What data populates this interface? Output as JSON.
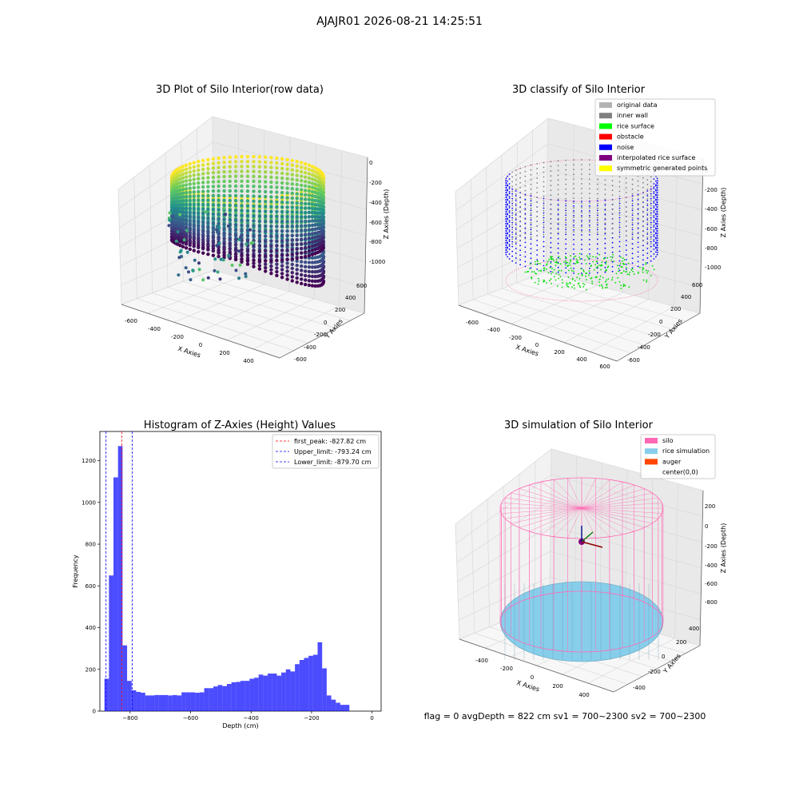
{
  "suptitle": "AJAJR01 2026-08-21 14:25:51",
  "panels": {
    "raw": {
      "title": "3D Plot of Silo Interior(row data)",
      "xlabel": "X Axies",
      "ylabel": "Y Axies",
      "zlabel": "Z Axies (Depth)",
      "xticks": [
        "-600",
        "-400",
        "-200",
        "0",
        "200",
        "400"
      ],
      "yticks": [
        "-600",
        "-400",
        "-200",
        "0",
        "200",
        "400",
        "600"
      ],
      "zticks": [
        "0",
        "-200",
        "-400",
        "-600",
        "-800",
        "-1000"
      ]
    },
    "classify": {
      "title": "3D classify of Silo Interior",
      "xlabel": "X Axies",
      "ylabel": "Y Axies",
      "zlabel": "Z Axies (Depth)",
      "xticks": [
        "-600",
        "-400",
        "-200",
        "0",
        "200",
        "400",
        "600"
      ],
      "yticks": [
        "-600",
        "-400",
        "-200",
        "0",
        "200",
        "400",
        "600"
      ],
      "zticks": [
        "0",
        "-200",
        "-400",
        "-600",
        "-800",
        "-1000"
      ],
      "legend": [
        {
          "label": "original data",
          "color": "#b3b3b3"
        },
        {
          "label": "inner wall",
          "color": "#808080"
        },
        {
          "label": "rice surface",
          "color": "#00ff00"
        },
        {
          "label": "obstacle",
          "color": "#ff0000"
        },
        {
          "label": "noise",
          "color": "#0000ff"
        },
        {
          "label": "interpolated rice surface",
          "color": "#800080"
        },
        {
          "label": "symmetric generated points",
          "color": "#ffff00"
        }
      ]
    },
    "sim": {
      "title": "3D simulation of Silo Interior",
      "xlabel": "X Axies",
      "ylabel": "Y Axies",
      "zlabel": "Z Axies (Depth)",
      "xticks": [
        "-400",
        "-200",
        "0",
        "200",
        "400"
      ],
      "yticks": [
        "-400",
        "-200",
        "0",
        "200",
        "400"
      ],
      "zticks": [
        "200",
        "0",
        "-200",
        "-400",
        "-600",
        "-800"
      ],
      "legend": [
        {
          "label": "silo",
          "color": "#ff69b4"
        },
        {
          "label": "rice simulation",
          "color": "#87ceeb"
        },
        {
          "label": "auger",
          "color": "#ff4500"
        },
        {
          "label": "center(0,0)",
          "color": "#ffffff"
        }
      ]
    }
  },
  "bottom_info": "flag = 0     avgDepth = 822 cm  sv1 = 700~2300  sv2 = 700~2300",
  "chart_data": [
    {
      "type": "scatter",
      "title": "3D Plot of Silo Interior(row data)",
      "xlabel": "X Axies",
      "ylabel": "Y Axies",
      "zlabel": "Z Axies (Depth)",
      "xlim": [
        -650,
        500
      ],
      "ylim": [
        -650,
        650
      ],
      "zlim": [
        -1100,
        50
      ],
      "colormap": "viridis",
      "notes_series": "cylindrical point cloud of silo wall, colored by depth"
    },
    {
      "type": "scatter",
      "title": "3D classify of Silo Interior",
      "xlabel": "X Axies",
      "ylabel": "Y Axies",
      "zlabel": "Z Axies (Depth)",
      "xlim": [
        -650,
        650
      ],
      "ylim": [
        -650,
        650
      ],
      "zlim": [
        -1100,
        50
      ],
      "series": [
        {
          "name": "original data"
        },
        {
          "name": "inner wall"
        },
        {
          "name": "rice surface"
        },
        {
          "name": "obstacle"
        },
        {
          "name": "noise"
        },
        {
          "name": "interpolated rice surface"
        },
        {
          "name": "symmetric generated points"
        }
      ]
    },
    {
      "type": "bar",
      "title": "Histogram of Z-Axies (Height) Values",
      "xlabel": "Depth (cm)",
      "ylabel": "Frequency",
      "xlim": [
        -900,
        30
      ],
      "ylim": [
        0,
        1340
      ],
      "xticks": [
        -800,
        -600,
        -400,
        -200,
        0
      ],
      "yticks": [
        0,
        200,
        400,
        600,
        800,
        1000,
        1200
      ],
      "bin_width": 15,
      "bins_start": [
        -885,
        -870,
        -855,
        -840,
        -825,
        -810,
        -795,
        -780,
        -765,
        -750,
        -735,
        -720,
        -705,
        -690,
        -675,
        -660,
        -645,
        -630,
        -615,
        -600,
        -585,
        -570,
        -555,
        -540,
        -525,
        -510,
        -495,
        -480,
        -465,
        -450,
        -435,
        -420,
        -405,
        -390,
        -375,
        -360,
        -345,
        -330,
        -315,
        -300,
        -285,
        -270,
        -255,
        -240,
        -225,
        -210,
        -195,
        -180,
        -165,
        -150,
        -135,
        -120,
        -105,
        -90,
        -75,
        -60,
        -45,
        -30
      ],
      "values": [
        155,
        650,
        1120,
        1270,
        315,
        145,
        100,
        92,
        88,
        75,
        75,
        77,
        77,
        77,
        75,
        77,
        75,
        90,
        90,
        90,
        88,
        90,
        110,
        110,
        118,
        125,
        120,
        130,
        138,
        140,
        145,
        145,
        155,
        160,
        175,
        170,
        180,
        180,
        170,
        185,
        200,
        190,
        225,
        245,
        255,
        265,
        270,
        330,
        205,
        75,
        55,
        40,
        30,
        30,
        0,
        0,
        0,
        0
      ],
      "vlines": [
        {
          "label": "first_peak: -827.82 cm",
          "x": -827.82,
          "color": "#ff0000"
        },
        {
          "label": "Upper_limit: -793.24 cm",
          "x": -793.24,
          "color": "#0000ff"
        },
        {
          "label": "Lower_limit: -879.70 cm",
          "x": -879.7,
          "color": "#0000ff"
        }
      ]
    },
    {
      "type": "scatter",
      "title": "3D simulation of Silo Interior",
      "xlabel": "X Axies",
      "ylabel": "Y Axies",
      "zlabel": "Z Axies (Depth)",
      "xlim": [
        -500,
        500
      ],
      "ylim": [
        -500,
        500
      ],
      "zlim": [
        -850,
        250
      ],
      "series": [
        {
          "name": "silo"
        },
        {
          "name": "rice simulation"
        },
        {
          "name": "auger"
        },
        {
          "name": "center(0,0)"
        }
      ]
    }
  ]
}
